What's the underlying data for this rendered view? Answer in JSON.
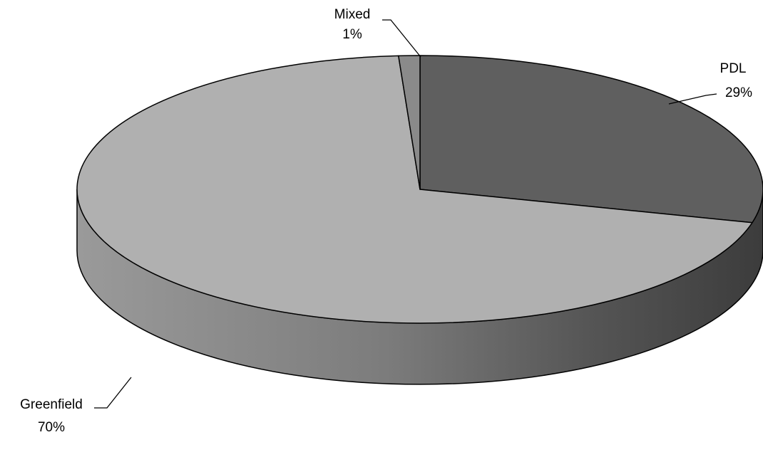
{
  "chart_data": {
    "type": "pie",
    "style": "3d",
    "title": "",
    "categories": [
      "PDL",
      "Greenfield",
      "Mixed"
    ],
    "values": [
      29,
      70,
      1
    ],
    "labels": [
      {
        "name": "PDL",
        "percent": "29%"
      },
      {
        "name": "Greenfield",
        "percent": "70%"
      },
      {
        "name": "Mixed",
        "percent": "1%"
      }
    ],
    "colors": {
      "PDL": "#5f5f5f",
      "Greenfield": "#b0b0b0",
      "Mixed": "#8a8a8a",
      "outline": "#000000",
      "background": "#ffffff"
    },
    "legend": "none"
  }
}
